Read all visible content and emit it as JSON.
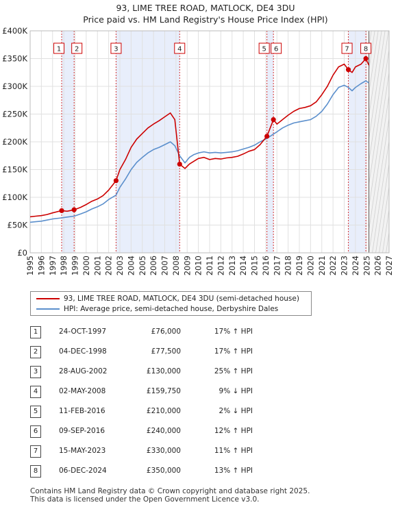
{
  "title": {
    "line1": "93, LIME TREE ROAD, MATLOCK, DE4 3DU",
    "line2": "Price paid vs. HM Land Registry's House Price Index (HPI)"
  },
  "colors": {
    "property": "#cc0000",
    "hpi": "#5b8fcc",
    "shade": "#e8eefb",
    "grid": "#e0e0e0",
    "marker_line": "#cc0000"
  },
  "chart_data": {
    "type": "line",
    "title": "93, LIME TREE ROAD, MATLOCK, DE4 3DU",
    "subtitle": "Price paid vs. HM Land Registry's House Price Index (HPI)",
    "xlim": [
      1995,
      2027
    ],
    "ylim": [
      0,
      400000
    ],
    "x_ticks": [
      "1995",
      "1996",
      "1997",
      "1998",
      "1999",
      "2000",
      "2001",
      "2002",
      "2003",
      "2004",
      "2005",
      "2006",
      "2007",
      "2008",
      "2009",
      "2010",
      "2011",
      "2012",
      "2013",
      "2014",
      "2015",
      "2016",
      "2017",
      "2018",
      "2019",
      "2020",
      "2021",
      "2022",
      "2023",
      "2024",
      "2025",
      "2026",
      "2027"
    ],
    "y_ticks": [
      {
        "value": 0,
        "label": "£0"
      },
      {
        "value": 50000,
        "label": "£50K"
      },
      {
        "value": 100000,
        "label": "£100K"
      },
      {
        "value": 150000,
        "label": "£150K"
      },
      {
        "value": 200000,
        "label": "£200K"
      },
      {
        "value": 250000,
        "label": "£250K"
      },
      {
        "value": 300000,
        "label": "£300K"
      },
      {
        "value": 350000,
        "label": "£350K"
      },
      {
        "value": 400000,
        "label": "£400K"
      }
    ],
    "grid": true,
    "shaded_periods": [
      [
        1997.81,
        1998.92
      ],
      [
        2002.66,
        2008.33
      ],
      [
        2016.11,
        2016.69
      ],
      [
        2023.37,
        2024.93
      ]
    ],
    "data_end": 2025.2,
    "series": [
      {
        "name": "93, LIME TREE ROAD, MATLOCK, DE4 3DU (semi-detached house)",
        "x": [
          1995,
          1995.5,
          1996,
          1996.5,
          1997,
          1997.81,
          1998.3,
          1998.92,
          1999.5,
          2000,
          2000.5,
          2001,
          2001.5,
          2002,
          2002.66,
          2003,
          2003.5,
          2004,
          2004.5,
          2005,
          2005.5,
          2006,
          2006.5,
          2007,
          2007.5,
          2007.9,
          2008.33,
          2008.8,
          2009.2,
          2009.6,
          2010,
          2010.5,
          2011,
          2011.5,
          2012,
          2012.5,
          2013,
          2013.5,
          2014,
          2014.5,
          2015,
          2015.5,
          2016.11,
          2016.69,
          2017,
          2017.5,
          2018,
          2018.5,
          2019,
          2019.5,
          2020,
          2020.5,
          2021,
          2021.5,
          2022,
          2022.5,
          2023,
          2023.37,
          2023.7,
          2024,
          2024.5,
          2024.93,
          2025.2
        ],
        "values": [
          65000,
          66000,
          67000,
          69000,
          72000,
          76000,
          75000,
          77500,
          82000,
          87000,
          93000,
          97000,
          103000,
          113000,
          130000,
          150000,
          168000,
          190000,
          205000,
          215000,
          225000,
          232000,
          238000,
          245000,
          252000,
          240000,
          159750,
          152000,
          160000,
          165000,
          170000,
          172000,
          168000,
          170000,
          169000,
          171000,
          172000,
          174000,
          178000,
          183000,
          186000,
          195000,
          210000,
          240000,
          232000,
          240000,
          248000,
          255000,
          260000,
          262000,
          265000,
          272000,
          285000,
          300000,
          320000,
          335000,
          340000,
          330000,
          325000,
          335000,
          340000,
          350000,
          338000
        ]
      },
      {
        "name": "HPI: Average price, semi-detached house, Derbyshire Dales",
        "x": [
          1995,
          1995.5,
          1996,
          1996.5,
          1997,
          1997.81,
          1998.3,
          1998.92,
          1999.5,
          2000,
          2000.5,
          2001,
          2001.5,
          2002,
          2002.66,
          2003,
          2003.5,
          2004,
          2004.5,
          2005,
          2005.5,
          2006,
          2006.5,
          2007,
          2007.5,
          2007.9,
          2008.33,
          2008.8,
          2009.2,
          2009.6,
          2010,
          2010.5,
          2011,
          2011.5,
          2012,
          2012.5,
          2013,
          2013.5,
          2014,
          2014.5,
          2015,
          2015.5,
          2016.11,
          2016.69,
          2017,
          2017.5,
          2018,
          2018.5,
          2019,
          2019.5,
          2020,
          2020.5,
          2021,
          2021.5,
          2022,
          2022.5,
          2023,
          2023.37,
          2023.7,
          2024,
          2024.5,
          2024.93,
          2025.2
        ],
        "values": [
          55000,
          56000,
          57000,
          59000,
          61000,
          63000,
          64500,
          66000,
          70000,
          74000,
          79000,
          83000,
          88000,
          96000,
          104000,
          118000,
          133000,
          150000,
          163000,
          172000,
          180000,
          186000,
          190000,
          195000,
          200000,
          193000,
          175000,
          162000,
          172000,
          177000,
          180000,
          182000,
          180000,
          181000,
          180000,
          181000,
          182000,
          184000,
          187000,
          190000,
          194000,
          200000,
          206000,
          214000,
          218000,
          225000,
          230000,
          234000,
          236000,
          238000,
          240000,
          246000,
          255000,
          268000,
          285000,
          298000,
          302000,
          298000,
          292000,
          298000,
          305000,
          310000,
          306000
        ]
      }
    ],
    "sales": [
      {
        "id": "1",
        "x": 1997.81,
        "price": 76000
      },
      {
        "id": "2",
        "x": 1998.92,
        "price": 77500
      },
      {
        "id": "3",
        "x": 2002.66,
        "price": 130000
      },
      {
        "id": "4",
        "x": 2008.33,
        "price": 159750
      },
      {
        "id": "5",
        "x": 2016.11,
        "price": 210000
      },
      {
        "id": "6",
        "x": 2016.69,
        "price": 240000
      },
      {
        "id": "7",
        "x": 2023.37,
        "price": 330000
      },
      {
        "id": "8",
        "x": 2024.93,
        "price": 350000
      }
    ]
  },
  "legend": {
    "property_label": "93, LIME TREE ROAD, MATLOCK, DE4 3DU (semi-detached house)",
    "hpi_label": "HPI: Average price, semi-detached house, Derbyshire Dales"
  },
  "sales_table": [
    {
      "num": "1",
      "date": "24-OCT-1997",
      "price": "£76,000",
      "hpi": "17% ↑ HPI"
    },
    {
      "num": "2",
      "date": "04-DEC-1998",
      "price": "£77,500",
      "hpi": "17% ↑ HPI"
    },
    {
      "num": "3",
      "date": "28-AUG-2002",
      "price": "£130,000",
      "hpi": "25% ↑ HPI"
    },
    {
      "num": "4",
      "date": "02-MAY-2008",
      "price": "£159,750",
      "hpi": "9% ↓ HPI"
    },
    {
      "num": "5",
      "date": "11-FEB-2016",
      "price": "£210,000",
      "hpi": "2% ↓ HPI"
    },
    {
      "num": "6",
      "date": "09-SEP-2016",
      "price": "£240,000",
      "hpi": "12% ↑ HPI"
    },
    {
      "num": "7",
      "date": "15-MAY-2023",
      "price": "£330,000",
      "hpi": "11% ↑ HPI"
    },
    {
      "num": "8",
      "date": "06-DEC-2024",
      "price": "£350,000",
      "hpi": "13% ↑ HPI"
    }
  ],
  "footer": {
    "line1": "Contains HM Land Registry data © Crown copyright and database right 2025.",
    "line2": "This data is licensed under the Open Government Licence v3.0."
  }
}
